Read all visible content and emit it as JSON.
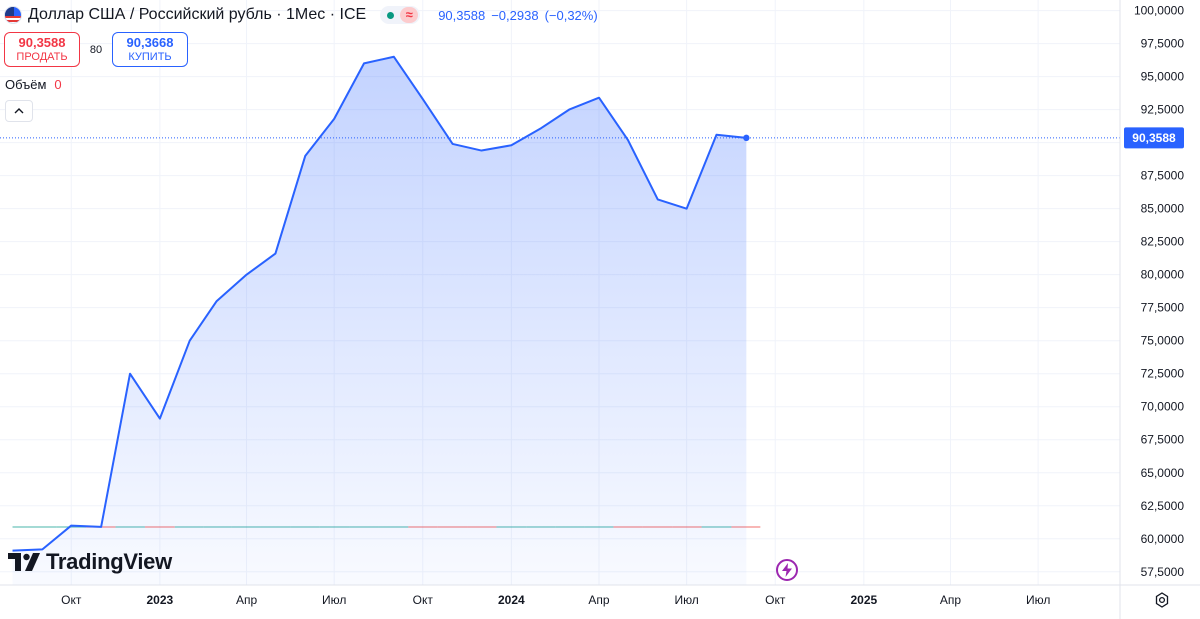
{
  "legend": {
    "title": "Доллар США / Российский рубль · 1Мес · ICE",
    "last": "90,3588",
    "change": "−0,2938",
    "change_pct": "(−0,32%)",
    "status_wave": "≈"
  },
  "trade": {
    "sell_price": "90,3588",
    "sell_label": "ПРОДАТЬ",
    "spread": "80",
    "buy_price": "90,3668",
    "buy_label": "КУПИТЬ"
  },
  "volume": {
    "label": "Объём",
    "value": "0"
  },
  "watermark": {
    "brand": "TradingView"
  },
  "price_label": "90,3588",
  "colors": {
    "line": "#2962ff",
    "sell": "#f23645",
    "buy": "#2962ff",
    "status_open": "#089981",
    "lightning": "#9c27b0",
    "text": "#131722",
    "axis_text": "#131722"
  },
  "chart_data": {
    "type": "area",
    "series": [
      {
        "values": [
          59.1,
          59.2,
          61.0,
          60.9,
          72.5,
          69.1,
          75.0,
          78.0,
          80.0,
          81.6,
          89.0,
          91.8,
          96.0,
          96.5,
          93.3,
          89.9,
          89.4,
          89.8,
          91.1,
          92.5,
          93.4,
          90.2,
          85.7,
          85.0,
          90.6,
          90.3588
        ]
      }
    ],
    "x": [
      "2022-08",
      "2022-09",
      "2022-10",
      "2022-11",
      "2022-12",
      "2023-01",
      "2023-02",
      "2023-03",
      "2023-04",
      "2023-05",
      "2023-06",
      "2023-07",
      "2023-08",
      "2023-09",
      "2023-10",
      "2023-11",
      "2023-12",
      "2024-01",
      "2024-02",
      "2024-03",
      "2024-04",
      "2024-05",
      "2024-06",
      "2024-07",
      "2024-08",
      "2024-09"
    ],
    "volume": [
      0,
      0,
      0,
      0,
      0,
      0,
      0,
      0,
      0,
      0,
      0,
      0,
      0,
      0,
      0,
      0,
      0,
      0,
      0,
      0,
      0,
      0,
      0,
      0,
      0,
      0
    ],
    "ylim": [
      56.5,
      100.8
    ],
    "y_ticks": [
      57.5,
      60,
      62.5,
      65,
      67.5,
      70,
      72.5,
      75,
      77.5,
      80,
      82.5,
      85,
      87.5,
      90,
      92.5,
      95,
      97.5,
      100
    ],
    "y_tick_labels": [
      "57,5000",
      "60,0000",
      "62,5000",
      "65,0000",
      "67,5000",
      "70,0000",
      "72,5000",
      "75,0000",
      "77,5000",
      "80,0000",
      "82,5000",
      "85,0000",
      "87,5000",
      "90,0000",
      "92,5000",
      "95,0000",
      "97,5000",
      "100,0000"
    ],
    "x_ticks": [
      {
        "date": "2022-10",
        "label": "Окт",
        "bold": false
      },
      {
        "date": "2023-01",
        "label": "2023",
        "bold": true
      },
      {
        "date": "2023-04",
        "label": "Апр",
        "bold": false
      },
      {
        "date": "2023-07",
        "label": "Июл",
        "bold": false
      },
      {
        "date": "2023-10",
        "label": "Окт",
        "bold": false
      },
      {
        "date": "2024-01",
        "label": "2024",
        "bold": true
      },
      {
        "date": "2024-04",
        "label": "Апр",
        "bold": false
      },
      {
        "date": "2024-07",
        "label": "Июл",
        "bold": false
      },
      {
        "date": "2024-10",
        "label": "Окт",
        "bold": false
      },
      {
        "date": "2025-01",
        "label": "2025",
        "bold": true
      },
      {
        "date": "2025-04",
        "label": "Апр",
        "bold": false
      },
      {
        "date": "2025-07",
        "label": "Июл",
        "bold": false
      }
    ],
    "x_range": [
      "2022-07-19",
      "2025-09-24"
    ],
    "last_value": 90.3588,
    "grid": true,
    "price_scale": "right"
  }
}
